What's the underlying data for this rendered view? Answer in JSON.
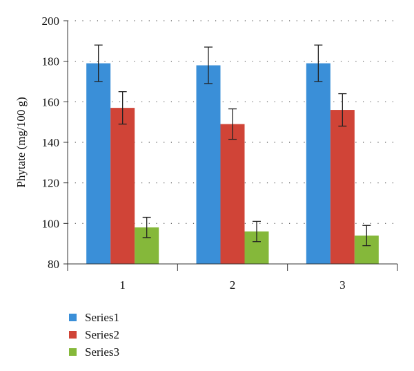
{
  "chart_data": {
    "type": "bar",
    "categories": [
      "1",
      "2",
      "3"
    ],
    "ylabel": "Phytate (mg/100 g)",
    "xlabel": "",
    "ylim": [
      80,
      200
    ],
    "yticks": [
      "80",
      "100",
      "120",
      "140",
      "160",
      "180",
      "200"
    ],
    "grid": true,
    "legend_position": "bottom-left",
    "series": [
      {
        "name": "Series1",
        "color": "#3a8fd8",
        "values": [
          179,
          178,
          179
        ],
        "errors": [
          9,
          9,
          9
        ]
      },
      {
        "name": "Series2",
        "color": "#d04437",
        "values": [
          157,
          149,
          156
        ],
        "errors": [
          8,
          7.5,
          8
        ]
      },
      {
        "name": "Series3",
        "color": "#85b83a",
        "values": [
          98,
          96,
          94
        ],
        "errors": [
          5,
          5,
          5
        ]
      }
    ]
  }
}
